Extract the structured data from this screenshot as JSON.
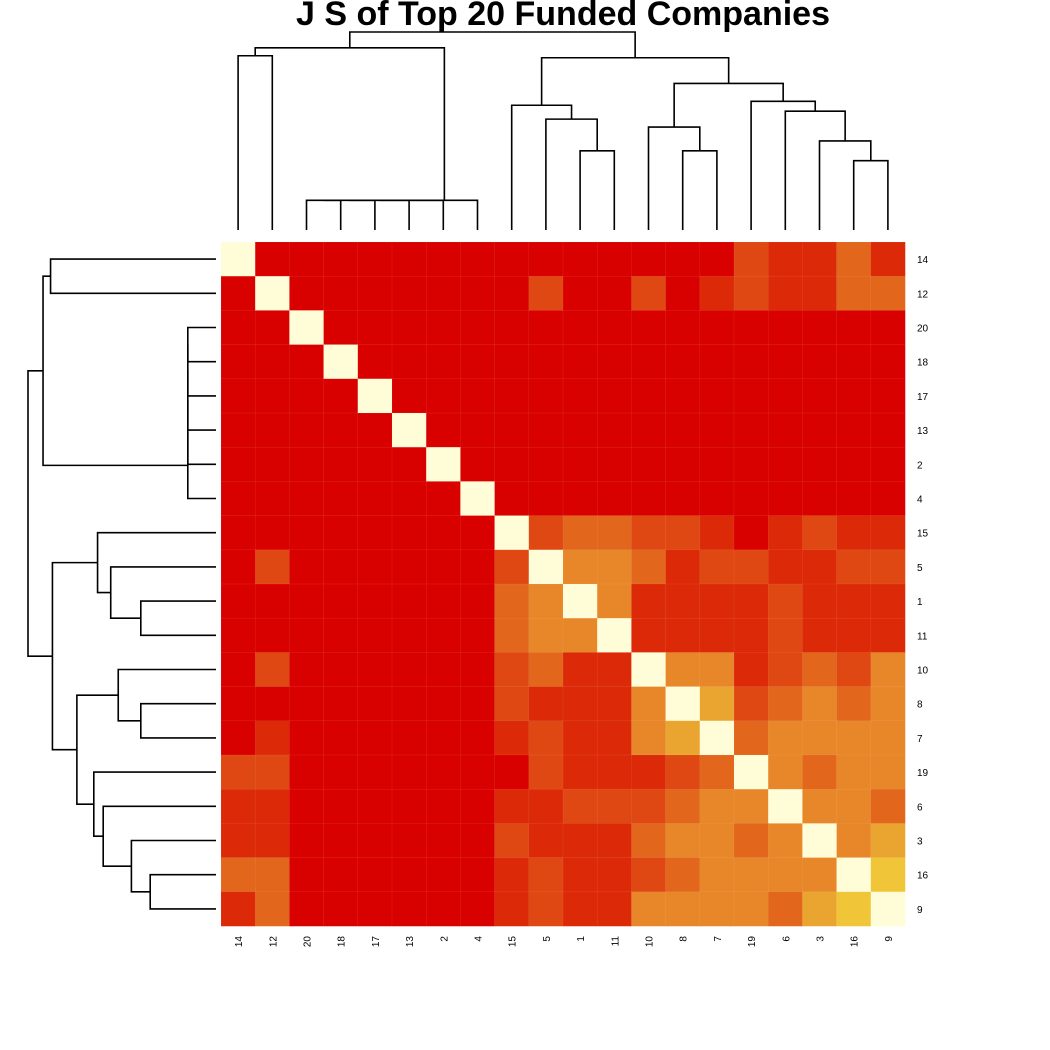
{
  "chart_data": {
    "type": "heatmap",
    "title": "J S of Top 20 Funded Companies",
    "row_labels": [
      "14",
      "12",
      "20",
      "18",
      "17",
      "13",
      "2",
      "4",
      "15",
      "5",
      "1",
      "11",
      "10",
      "8",
      "7",
      "19",
      "6",
      "3",
      "16",
      "9"
    ],
    "col_labels": [
      "14",
      "12",
      "20",
      "18",
      "17",
      "13",
      "2",
      "4",
      "15",
      "5",
      "1",
      "11",
      "10",
      "8",
      "7",
      "19",
      "6",
      "3",
      "16",
      "9"
    ],
    "color_scale": {
      "low": "#d90000",
      "stops": [
        "#d90000",
        "#dc2a08",
        "#df4812",
        "#e2661c",
        "#e8862a",
        "#eaa530",
        "#f0c638",
        "#f5e23c",
        "#fffdd8"
      ],
      "high": "#fffdd8"
    },
    "matrix": [
      [
        9,
        0,
        0,
        0,
        0,
        0,
        0,
        0,
        0,
        0,
        0,
        0,
        0,
        0,
        0,
        2,
        1,
        1,
        3,
        1
      ],
      [
        0,
        9,
        0,
        0,
        0,
        0,
        0,
        0,
        0,
        2,
        0,
        0,
        2,
        0,
        1,
        2,
        1,
        1,
        3,
        3
      ],
      [
        0,
        0,
        9,
        0,
        0,
        0,
        0,
        0,
        0,
        0,
        0,
        0,
        0,
        0,
        0,
        0,
        0,
        0,
        0,
        0
      ],
      [
        0,
        0,
        0,
        9,
        0,
        0,
        0,
        0,
        0,
        0,
        0,
        0,
        0,
        0,
        0,
        0,
        0,
        0,
        0,
        0
      ],
      [
        0,
        0,
        0,
        0,
        9,
        0,
        0,
        0,
        0,
        0,
        0,
        0,
        0,
        0,
        0,
        0,
        0,
        0,
        0,
        0
      ],
      [
        0,
        0,
        0,
        0,
        0,
        9,
        0,
        0,
        0,
        0,
        0,
        0,
        0,
        0,
        0,
        0,
        0,
        0,
        0,
        0
      ],
      [
        0,
        0,
        0,
        0,
        0,
        0,
        9,
        0,
        0,
        0,
        0,
        0,
        0,
        0,
        0,
        0,
        0,
        0,
        0,
        0
      ],
      [
        0,
        0,
        0,
        0,
        0,
        0,
        0,
        9,
        0,
        0,
        0,
        0,
        0,
        0,
        0,
        0,
        0,
        0,
        0,
        0
      ],
      [
        0,
        0,
        0,
        0,
        0,
        0,
        0,
        0,
        9,
        2,
        3,
        3,
        2,
        2,
        1,
        0,
        1,
        2,
        1,
        1
      ],
      [
        0,
        2,
        0,
        0,
        0,
        0,
        0,
        0,
        2,
        9,
        4,
        4,
        3,
        1,
        2,
        2,
        1,
        1,
        2,
        2
      ],
      [
        0,
        0,
        0,
        0,
        0,
        0,
        0,
        0,
        3,
        4,
        9,
        5,
        1,
        1,
        1,
        1,
        2,
        1,
        1,
        1
      ],
      [
        0,
        0,
        0,
        0,
        0,
        0,
        0,
        0,
        3,
        4,
        5,
        9,
        1,
        1,
        1,
        1,
        2,
        1,
        1,
        1
      ],
      [
        0,
        2,
        0,
        0,
        0,
        0,
        0,
        0,
        2,
        3,
        1,
        1,
        9,
        5,
        5,
        1,
        2,
        3,
        2,
        5
      ],
      [
        0,
        0,
        0,
        0,
        0,
        0,
        0,
        0,
        2,
        1,
        1,
        1,
        5,
        9,
        6,
        2,
        3,
        5,
        3,
        4
      ],
      [
        0,
        1,
        0,
        0,
        0,
        0,
        0,
        0,
        1,
        2,
        1,
        1,
        5,
        6,
        9,
        3,
        5,
        4,
        5,
        5
      ],
      [
        2,
        2,
        0,
        0,
        0,
        0,
        0,
        0,
        0,
        2,
        1,
        1,
        1,
        2,
        3,
        9,
        4,
        3,
        5,
        4
      ],
      [
        1,
        1,
        0,
        0,
        0,
        0,
        0,
        0,
        1,
        1,
        2,
        2,
        2,
        3,
        5,
        4,
        9,
        5,
        4,
        3
      ],
      [
        1,
        1,
        0,
        0,
        0,
        0,
        0,
        0,
        2,
        1,
        1,
        1,
        3,
        5,
        4,
        3,
        5,
        9,
        5,
        6
      ],
      [
        3,
        3,
        0,
        0,
        0,
        0,
        0,
        0,
        1,
        2,
        1,
        1,
        2,
        3,
        5,
        5,
        4,
        5,
        9,
        7
      ],
      [
        1,
        3,
        0,
        0,
        0,
        0,
        0,
        0,
        1,
        2,
        1,
        1,
        5,
        4,
        5,
        4,
        3,
        6,
        7,
        9
      ]
    ],
    "value_range": [
      0,
      9
    ],
    "dendrogram": {
      "leaf_order": [
        "14",
        "12",
        "20",
        "18",
        "17",
        "13",
        "2",
        "4",
        "15",
        "5",
        "1",
        "11",
        "10",
        "8",
        "7",
        "19",
        "6",
        "3",
        "16",
        "9"
      ],
      "merges": [
        [
          -3,
          -4,
          0.15
        ],
        [
          -5,
          1,
          0.15
        ],
        [
          -6,
          2,
          0.15
        ],
        [
          -7,
          3,
          0.15
        ],
        [
          -8,
          4,
          0.15
        ],
        [
          -1,
          -2,
          0.88
        ],
        [
          6,
          5,
          0.92
        ],
        [
          -11,
          -12,
          0.4
        ],
        [
          -10,
          8,
          0.56
        ],
        [
          -9,
          9,
          0.63
        ],
        [
          -14,
          -15,
          0.4
        ],
        [
          -13,
          11,
          0.52
        ],
        [
          -19,
          -20,
          0.35
        ],
        [
          -18,
          13,
          0.45
        ],
        [
          -17,
          14,
          0.6
        ],
        [
          -16,
          15,
          0.65
        ],
        [
          12,
          16,
          0.74
        ],
        [
          10,
          17,
          0.87
        ],
        [
          7,
          18,
          1.0
        ]
      ]
    },
    "grid": false,
    "legend": "none"
  }
}
